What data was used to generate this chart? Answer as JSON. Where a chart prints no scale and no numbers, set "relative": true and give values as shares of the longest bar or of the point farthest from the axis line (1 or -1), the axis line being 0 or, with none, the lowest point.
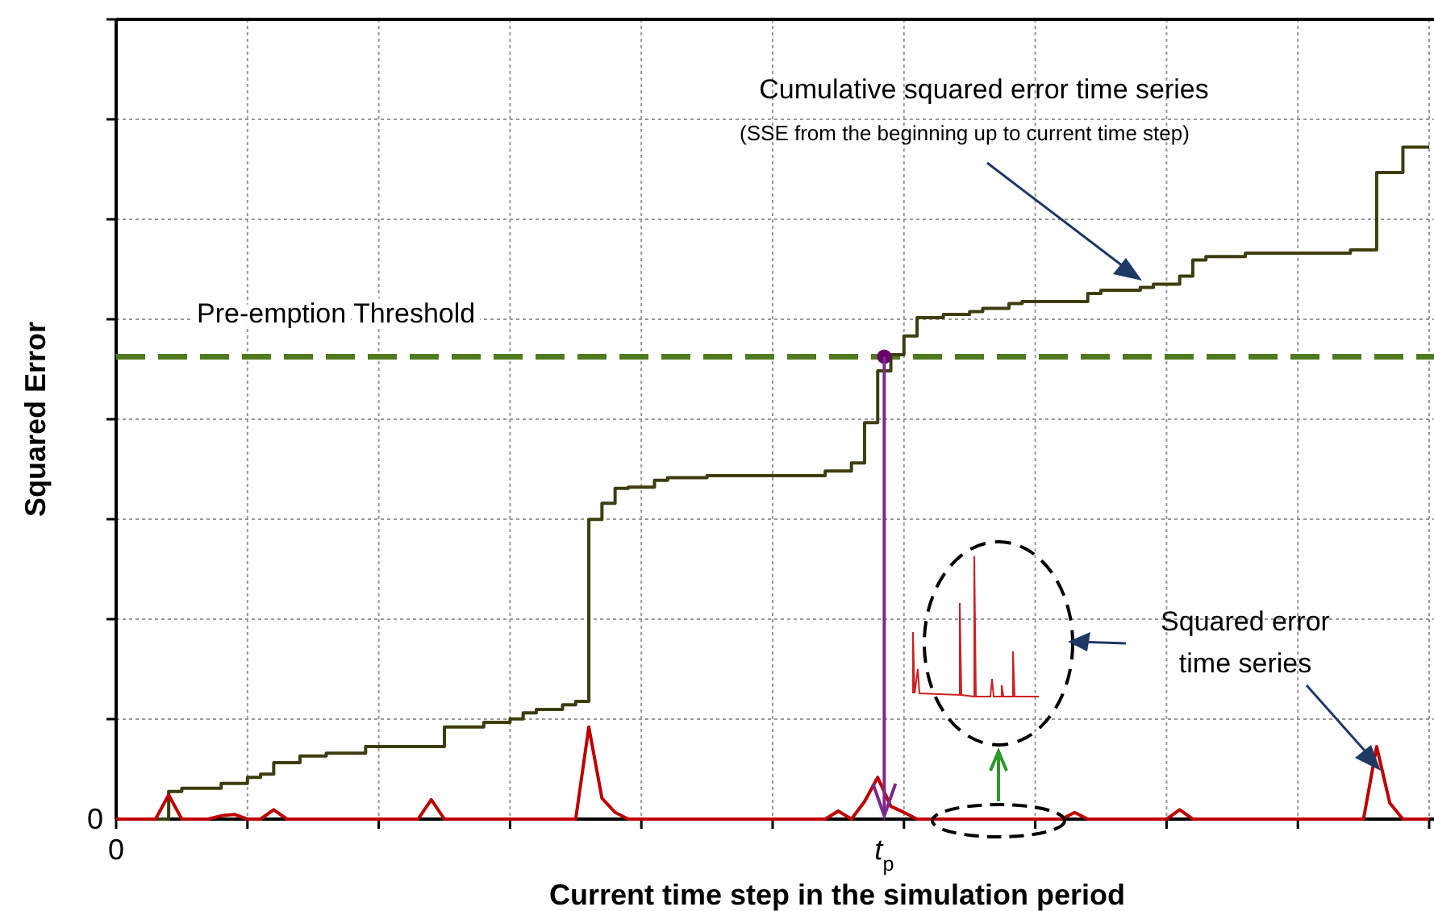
{
  "chart_data": {
    "type": "step",
    "relative": true,
    "xlabel": "Current time step in the simulation period",
    "ylabel": "Squared Error",
    "grid": true,
    "categories": [
      null,
      null,
      null,
      null,
      null,
      null,
      null,
      null,
      null,
      null,
      null,
      null,
      null,
      null,
      null,
      null,
      null,
      null,
      null,
      null,
      null,
      null,
      null,
      null,
      null,
      null,
      null,
      null,
      null,
      null,
      null,
      null,
      null,
      null,
      null,
      null,
      null,
      null,
      null,
      null,
      null,
      null,
      null,
      null,
      null,
      null,
      null,
      null,
      null,
      null,
      null,
      null,
      null,
      null,
      null,
      null,
      null,
      null,
      null,
      null,
      null,
      null,
      null,
      null,
      null,
      null,
      null,
      null,
      null,
      null,
      null,
      null,
      null,
      null,
      null,
      null,
      null,
      null,
      null,
      null,
      null,
      null,
      null,
      null,
      null,
      null,
      null,
      null,
      null,
      null,
      null,
      null,
      null,
      null,
      null,
      null,
      null,
      null,
      null,
      null,
      null
    ],
    "series": [
      {
        "color": "#3d3d10",
        "values": [
          0,
          0,
          0,
          0,
          0.041,
          0.046,
          0.046,
          0.046,
          0.053,
          0.053,
          0.062,
          0.067,
          0.084,
          0.084,
          0.094,
          0.094,
          0.098,
          0.098,
          0.098,
          0.108,
          0.108,
          0.108,
          0.108,
          0.108,
          0.108,
          0.137,
          0.137,
          0.137,
          0.144,
          0.144,
          0.149,
          0.158,
          0.163,
          0.163,
          0.17,
          0.175,
          0.446,
          0.47,
          0.492,
          0.494,
          0.494,
          0.504,
          0.508,
          0.508,
          0.508,
          0.511,
          0.511,
          0.511,
          0.511,
          0.511,
          0.511,
          0.511,
          0.511,
          0.511,
          0.518,
          0.518,
          0.53,
          0.59,
          0.667,
          0.691,
          0.719,
          0.746,
          0.746,
          0.751,
          0.751,
          0.755,
          0.76,
          0.76,
          0.767,
          0.77,
          0.77,
          0.77,
          0.77,
          0.77,
          0.782,
          0.787,
          0.787,
          0.787,
          0.791,
          0.796,
          0.796,
          0.808,
          0.832,
          0.837,
          0.837,
          0.837,
          0.842,
          0.842,
          0.842,
          0.842,
          0.842,
          0.842,
          0.842,
          0.842,
          0.847,
          0.847,
          0.962,
          0.962,
          1,
          1,
          1
        ]
      },
      {
        "type": "line",
        "color": "#c00000",
        "values": [
          0,
          0,
          0,
          0,
          0.036,
          0,
          0,
          0,
          0.005,
          0.007,
          0,
          0,
          0.014,
          0,
          0,
          0,
          0,
          0,
          0,
          0,
          0,
          0,
          0,
          0,
          0.029,
          0,
          0,
          0,
          0,
          0,
          0,
          0,
          0,
          0,
          0,
          0,
          0.137,
          0.031,
          0.01,
          0,
          0,
          0,
          0,
          0,
          0,
          0,
          0,
          0,
          0,
          0,
          0,
          0,
          0,
          0,
          0,
          0.012,
          0,
          0.026,
          0.062,
          0.019,
          0.01,
          0,
          0,
          0,
          0,
          0,
          0,
          0,
          0,
          0,
          0,
          0,
          0,
          0.01,
          0,
          0,
          0,
          0,
          0,
          0,
          0,
          0.014,
          0,
          0,
          0,
          0,
          0,
          0,
          0,
          0,
          0,
          0,
          0,
          0,
          0,
          0,
          0.108,
          0.024,
          0,
          0,
          0
        ]
      }
    ],
    "ref_lines": [
      {
        "axis": "y",
        "value": 0.688,
        "label": "Pre-emption Threshold",
        "color": "#4f7a1f",
        "line_style": "dashed"
      }
    ],
    "annotations": [
      "Cumulative squared error time series",
      "(SSE from the beginning up to current time step)",
      "Squared error time series",
      "0",
      "0",
      "t$_{p}$"
    ]
  }
}
